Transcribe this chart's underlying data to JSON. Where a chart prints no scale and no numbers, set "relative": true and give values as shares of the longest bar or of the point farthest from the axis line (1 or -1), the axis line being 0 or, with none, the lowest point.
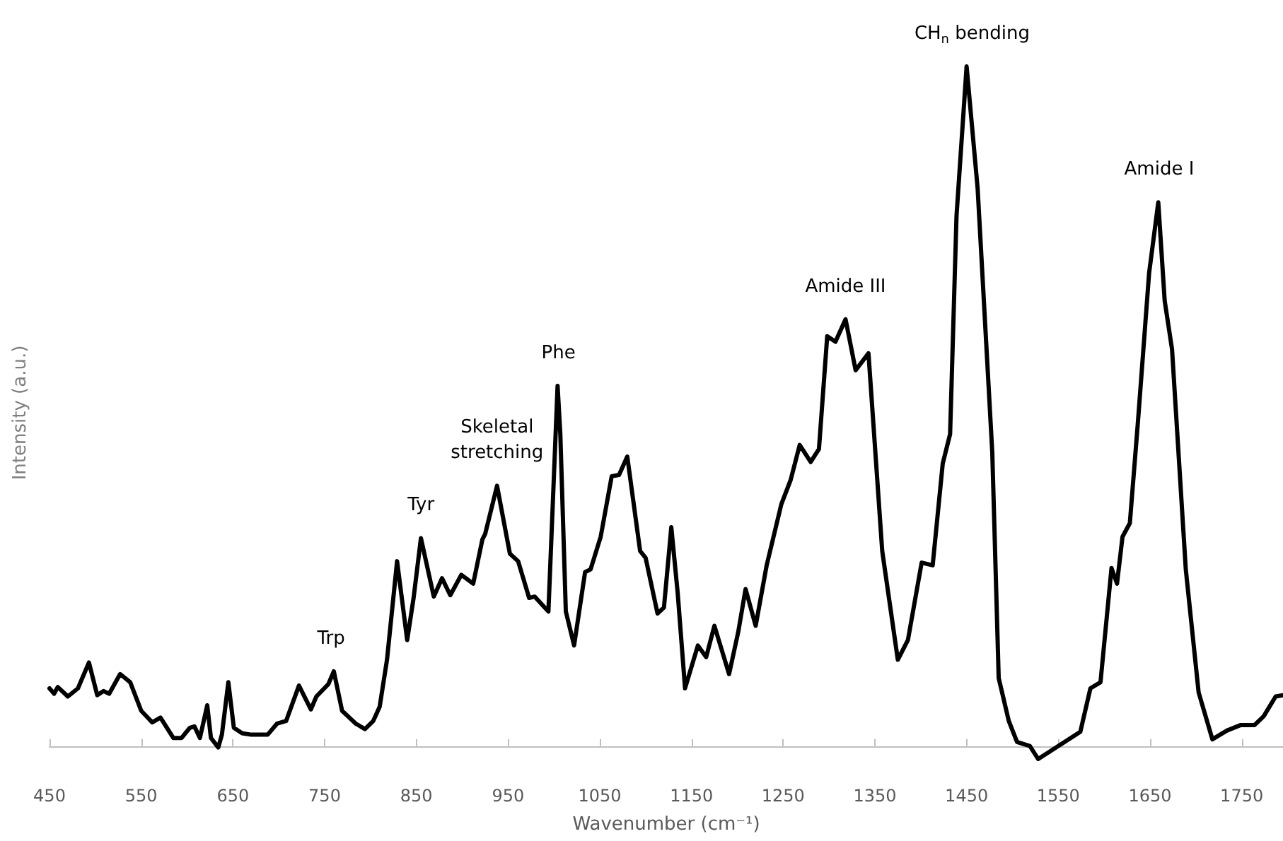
{
  "chart_data": {
    "type": "line",
    "relative": true,
    "xlabel": "Wavenumber (cm⁻¹)",
    "ylabel": "Intensity (a.u.)",
    "tick_labels": "x",
    "grid": false,
    "marker": "none",
    "line_style": "solid",
    "xlim": [
      450,
      1795
    ],
    "xticks": [
      450,
      550,
      650,
      750,
      850,
      950,
      1050,
      1150,
      1250,
      1350,
      1450,
      1550,
      1650,
      1750
    ],
    "annotations": [
      {
        "text": "Trp",
        "x": 757,
        "y": 0.11
      },
      {
        "text": "Tyr",
        "x": 855,
        "y": 0.306
      },
      {
        "text": "Skeletal\nstretching",
        "x": 938,
        "y": 0.383
      },
      {
        "text": "Phe",
        "x": 1005,
        "y": 0.53
      },
      {
        "text": "Amide III",
        "x": 1318,
        "y": 0.628
      },
      {
        "text": "CH$_{n}$ bending",
        "x": 1456,
        "y": 1.0
      },
      {
        "text": "Amide I",
        "x": 1660,
        "y": 0.8
      }
    ],
    "series": [
      {
        "color": "#000000",
        "x": [
          450,
          455,
          459,
          470,
          481,
          493,
          502,
          509,
          515,
          527,
          538,
          550,
          562,
          571,
          585,
          594,
          603,
          608,
          614,
          622,
          626,
          634,
          638,
          645,
          651,
          660,
          669,
          688,
          698,
          708,
          722,
          735,
          741,
          754,
          760,
          769,
          784,
          794,
          803,
          810,
          818,
          829,
          840,
          847,
          855,
          869,
          878,
          887,
          899,
          912,
          922,
          925,
          938,
          952,
          961,
          973,
          979,
          994,
          1004,
          1007,
          1013,
          1022,
          1034,
          1040,
          1051,
          1063,
          1071,
          1080,
          1094,
          1100,
          1113,
          1120,
          1128,
          1135,
          1143,
          1157,
          1166,
          1175,
          1191,
          1201,
          1209,
          1220,
          1232,
          1248,
          1258,
          1268,
          1280,
          1289,
          1298,
          1307,
          1318,
          1329,
          1343,
          1358,
          1375,
          1386,
          1401,
          1413,
          1424,
          1432,
          1439,
          1450,
          1462,
          1478,
          1485,
          1496,
          1505,
          1519,
          1528,
          1574,
          1585,
          1596,
          1608,
          1614,
          1620,
          1628,
          1637,
          1649,
          1659,
          1666,
          1674,
          1689,
          1703,
          1718,
          1734,
          1749,
          1764,
          1774,
          1787,
          1795
        ],
        "values": [
          0.085,
          0.077,
          0.087,
          0.073,
          0.085,
          0.123,
          0.075,
          0.081,
          0.077,
          0.106,
          0.094,
          0.052,
          0.035,
          0.042,
          0.012,
          0.012,
          0.027,
          0.029,
          0.012,
          0.06,
          0.012,
          -0.002,
          0.017,
          0.094,
          0.027,
          0.019,
          0.017,
          0.017,
          0.033,
          0.037,
          0.089,
          0.054,
          0.073,
          0.091,
          0.11,
          0.052,
          0.033,
          0.025,
          0.037,
          0.058,
          0.127,
          0.272,
          0.156,
          0.218,
          0.306,
          0.22,
          0.247,
          0.222,
          0.252,
          0.239,
          0.304,
          0.312,
          0.383,
          0.283,
          0.272,
          0.218,
          0.22,
          0.198,
          0.53,
          0.459,
          0.198,
          0.148,
          0.256,
          0.26,
          0.308,
          0.397,
          0.399,
          0.426,
          0.287,
          0.277,
          0.195,
          0.204,
          0.322,
          0.225,
          0.085,
          0.148,
          0.131,
          0.177,
          0.106,
          0.168,
          0.231,
          0.177,
          0.266,
          0.356,
          0.391,
          0.443,
          0.418,
          0.437,
          0.603,
          0.595,
          0.628,
          0.553,
          0.578,
          0.287,
          0.127,
          0.156,
          0.27,
          0.266,
          0.416,
          0.459,
          0.78,
          1.0,
          0.821,
          0.432,
          0.1,
          0.037,
          0.006,
          0.0,
          -0.019,
          0.021,
          0.085,
          0.094,
          0.262,
          0.239,
          0.308,
          0.328,
          0.48,
          0.696,
          0.8,
          0.655,
          0.584,
          0.26,
          0.079,
          0.01,
          0.023,
          0.031,
          0.031,
          0.044,
          0.073,
          0.075
        ]
      }
    ]
  }
}
